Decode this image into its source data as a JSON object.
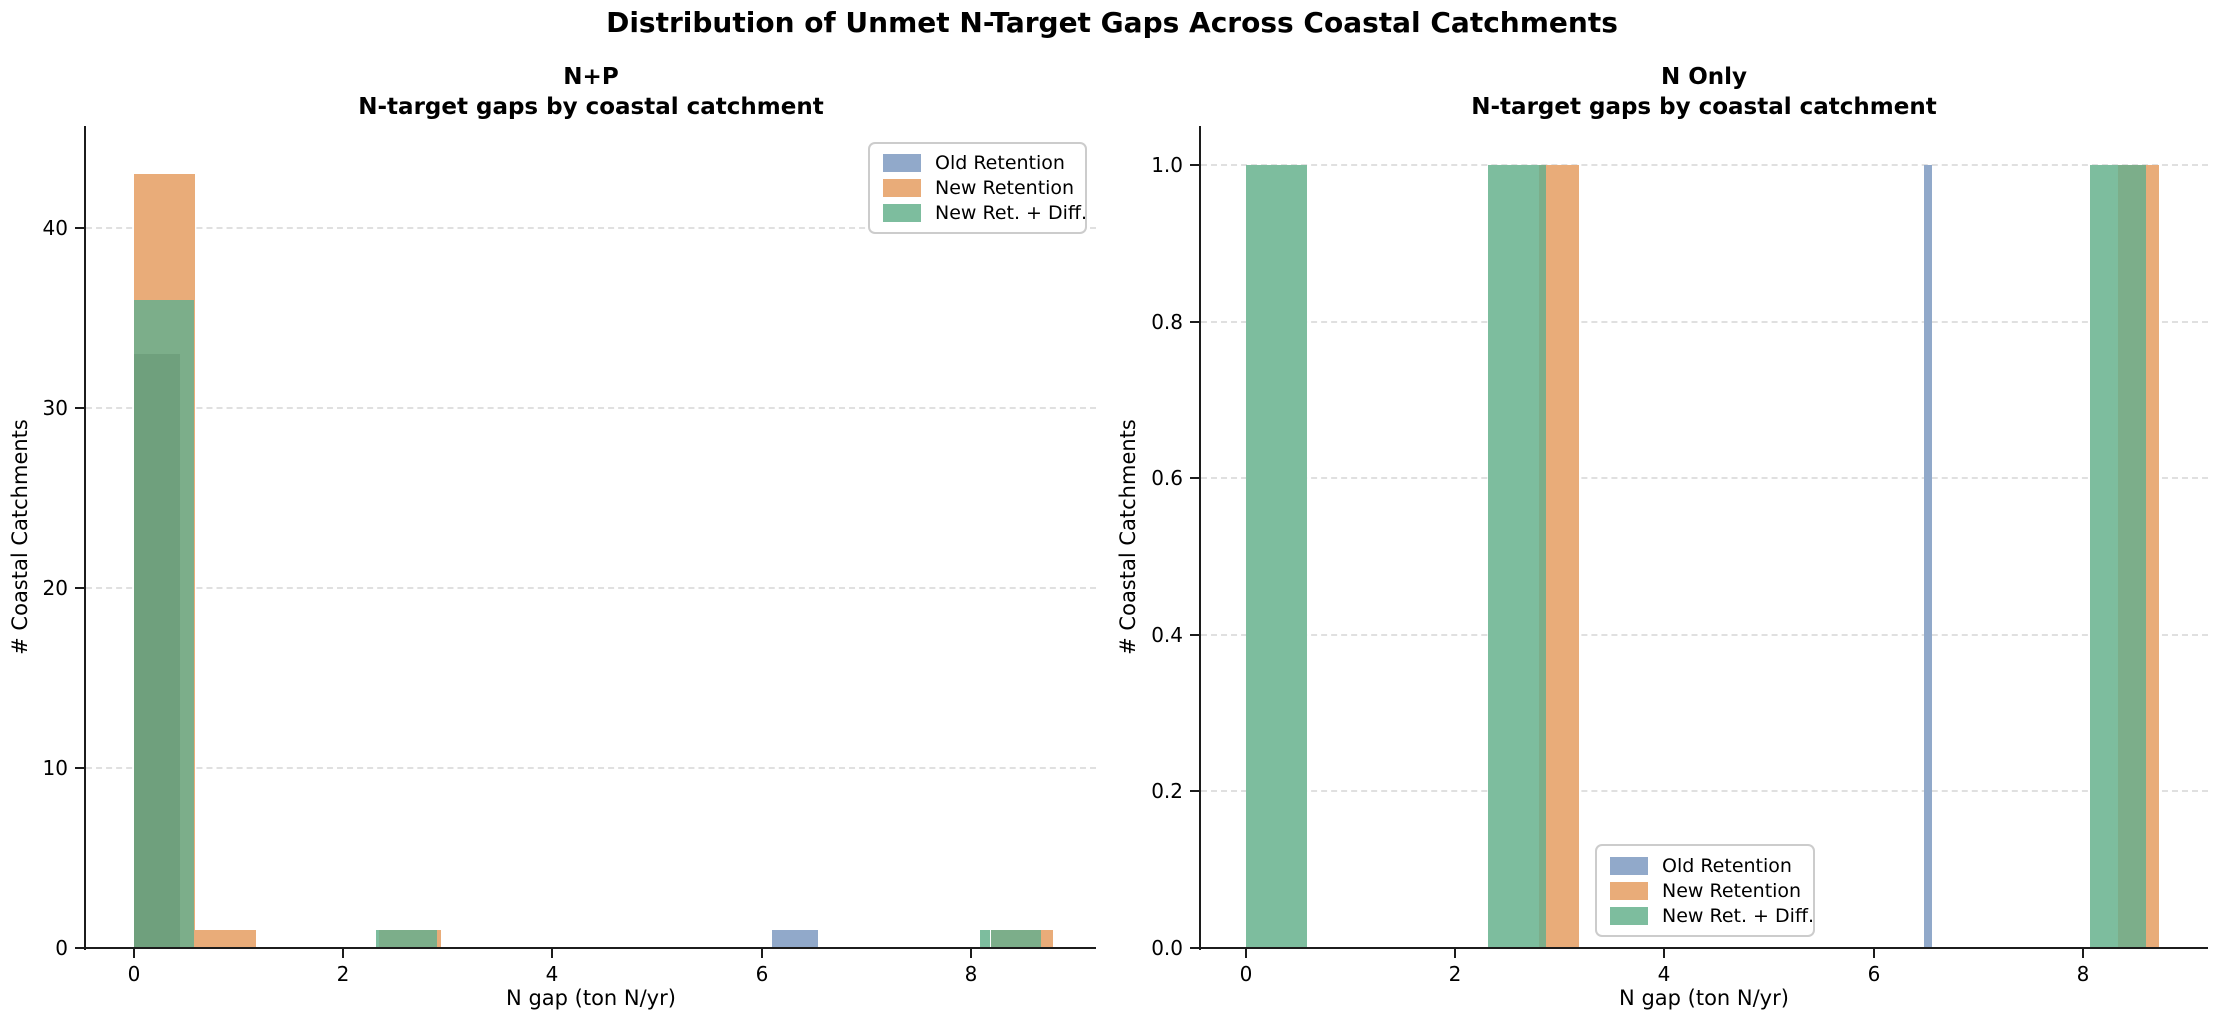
{
  "suptitle": "Distribution of Unmet N-Target Gaps Across Coastal Catchments",
  "legend": {
    "entries": [
      {
        "label": "Old Retention",
        "color_key": "blue"
      },
      {
        "label": "New Retention",
        "color_key": "orange"
      },
      {
        "label": "New Ret. + Diff.",
        "color_key": "green"
      }
    ]
  },
  "colors": {
    "blue": "#91A9CA",
    "orange": "#E9AC79",
    "green": "#7DBD9E",
    "green_over_orange": "#7CAE8A",
    "green_over_orange_blue": "#6FA07D",
    "grid": "#E0E0E0",
    "spine": "#1C1C1C",
    "legend_border": "#CCCCCC",
    "text": "#000000"
  },
  "chart_data": [
    {
      "type": "histogram",
      "title": "N+P",
      "subtitle": "N-target gaps by coastal catchment",
      "xlabel": "N gap (ton N/yr)",
      "ylabel": "# Coastal Catchments",
      "xlim": [
        -0.47,
        9.2
      ],
      "ylim": [
        0,
        45.7
      ],
      "grid": "horizontal-dashed",
      "legend_position": "upper right",
      "xticks": [
        {
          "v": 0,
          "label": "0"
        },
        {
          "v": 2,
          "label": "2"
        },
        {
          "v": 4,
          "label": "4"
        },
        {
          "v": 6,
          "label": "6"
        },
        {
          "v": 8,
          "label": "8"
        }
      ],
      "yticks": [
        {
          "v": 0,
          "label": "0"
        },
        {
          "v": 10,
          "label": "10"
        },
        {
          "v": 20,
          "label": "20"
        },
        {
          "v": 30,
          "label": "30"
        },
        {
          "v": 40,
          "label": "40"
        }
      ],
      "series": [
        {
          "name": "Old Retention",
          "bars": [
            {
              "x0": 0.0,
              "x1": 0.44,
              "count": 33
            },
            {
              "x0": 6.1,
              "x1": 6.54,
              "count": 1
            }
          ]
        },
        {
          "name": "New Retention",
          "bars": [
            {
              "x0": 0.0,
              "x1": 0.585,
              "count": 43
            },
            {
              "x0": 0.585,
              "x1": 1.17,
              "count": 1
            },
            {
              "x0": 2.34,
              "x1": 2.93,
              "count": 1
            },
            {
              "x0": 8.19,
              "x1": 8.78,
              "count": 1
            }
          ]
        },
        {
          "name": "New Ret. + Diff.",
          "bars": [
            {
              "x0": 0.0,
              "x1": 0.578,
              "count": 36
            },
            {
              "x0": 2.31,
              "x1": 2.89,
              "count": 1
            },
            {
              "x0": 8.09,
              "x1": 8.67,
              "count": 1
            }
          ]
        }
      ],
      "visible_segments": [
        {
          "x0": 0.0,
          "x1": 0.585,
          "count": 43,
          "color_key": "orange"
        },
        {
          "x0": 0.0,
          "x1": 0.578,
          "count": 36,
          "color_key": "green_over_orange"
        },
        {
          "x0": 0.0,
          "x1": 0.44,
          "count": 33,
          "color_key": "green_over_orange_blue"
        },
        {
          "x0": 0.585,
          "x1": 1.17,
          "count": 1,
          "color_key": "orange"
        },
        {
          "x0": 2.34,
          "x1": 2.93,
          "count": 1,
          "color_key": "orange"
        },
        {
          "x0": 2.31,
          "x1": 2.34,
          "count": 1,
          "color_key": "green"
        },
        {
          "x0": 2.34,
          "x1": 2.89,
          "count": 1,
          "color_key": "green_over_orange"
        },
        {
          "x0": 6.1,
          "x1": 6.54,
          "count": 1,
          "color_key": "blue"
        },
        {
          "x0": 8.19,
          "x1": 8.78,
          "count": 1,
          "color_key": "orange"
        },
        {
          "x0": 8.09,
          "x1": 8.19,
          "count": 1,
          "color_key": "green"
        },
        {
          "x0": 8.19,
          "x1": 8.67,
          "count": 1,
          "color_key": "green_over_orange"
        }
      ]
    },
    {
      "type": "histogram",
      "title": "N Only",
      "subtitle": "N-target gaps by coastal catchment",
      "xlabel": "N gap (ton N/yr)",
      "ylabel": "# Coastal Catchments",
      "xlim": [
        -0.45,
        9.2
      ],
      "ylim": [
        0,
        1.05
      ],
      "grid": "horizontal-dashed",
      "legend_position": "lower center",
      "xticks": [
        {
          "v": 0,
          "label": "0"
        },
        {
          "v": 2,
          "label": "2"
        },
        {
          "v": 4,
          "label": "4"
        },
        {
          "v": 6,
          "label": "6"
        },
        {
          "v": 8,
          "label": "8"
        }
      ],
      "yticks": [
        {
          "v": 0,
          "label": "0.0"
        },
        {
          "v": 0.2,
          "label": "0.2"
        },
        {
          "v": 0.4,
          "label": "0.4"
        },
        {
          "v": 0.6,
          "label": "0.6"
        },
        {
          "v": 0.8,
          "label": "0.8"
        },
        {
          "v": 1.0,
          "label": "1.0"
        }
      ],
      "series": [
        {
          "name": "Old Retention",
          "bars": [
            {
              "x0": 6.48,
              "x1": 6.56,
              "count": 1
            }
          ]
        },
        {
          "name": "New Retention",
          "bars": [
            {
              "x0": 2.8,
              "x1": 3.18,
              "count": 1
            },
            {
              "x0": 8.34,
              "x1": 8.73,
              "count": 1
            }
          ]
        },
        {
          "name": "New Ret. + Diff.",
          "bars": [
            {
              "x0": 0.0,
              "x1": 0.585,
              "count": 1
            },
            {
              "x0": 2.31,
              "x1": 2.87,
              "count": 1
            },
            {
              "x0": 8.07,
              "x1": 8.61,
              "count": 1
            }
          ]
        }
      ],
      "visible_segments": [
        {
          "x0": 0.0,
          "x1": 0.585,
          "count": 1,
          "color_key": "green"
        },
        {
          "x0": 2.8,
          "x1": 3.18,
          "count": 1,
          "color_key": "orange"
        },
        {
          "x0": 2.31,
          "x1": 2.8,
          "count": 1,
          "color_key": "green"
        },
        {
          "x0": 2.8,
          "x1": 2.87,
          "count": 1,
          "color_key": "green_over_orange"
        },
        {
          "x0": 6.48,
          "x1": 6.56,
          "count": 1,
          "color_key": "blue"
        },
        {
          "x0": 8.34,
          "x1": 8.73,
          "count": 1,
          "color_key": "orange"
        },
        {
          "x0": 8.07,
          "x1": 8.34,
          "count": 1,
          "color_key": "green"
        },
        {
          "x0": 8.34,
          "x1": 8.61,
          "count": 1,
          "color_key": "green_over_orange"
        }
      ]
    }
  ]
}
